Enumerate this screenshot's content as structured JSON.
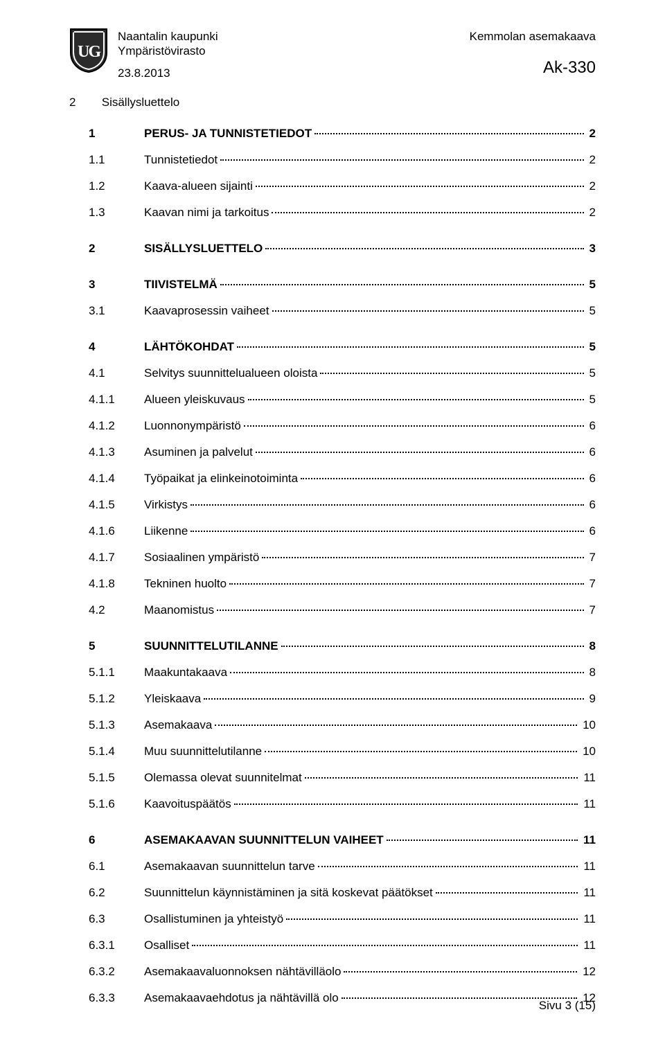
{
  "header": {
    "org_line1": "Naantalin kaupunki",
    "org_line2": "Ympäristövirasto",
    "plan_name": "Kemmolan asemakaava",
    "date": "23.8.2013",
    "code": "Ak-330"
  },
  "section_heading": {
    "num": "2",
    "label": "Sisällysluettelo"
  },
  "toc": [
    {
      "num": "1",
      "title": "PERUS- JA TUNNISTETIEDOT",
      "page": "2",
      "bold": true,
      "spacer_before": false
    },
    {
      "num": "1.1",
      "title": "Tunnistetiedot",
      "page": "2",
      "bold": false,
      "spacer_before": false
    },
    {
      "num": "1.2",
      "title": "Kaava-alueen sijainti",
      "page": "2",
      "bold": false,
      "spacer_before": false
    },
    {
      "num": "1.3",
      "title": "Kaavan nimi ja tarkoitus",
      "page": "2",
      "bold": false,
      "spacer_before": false
    },
    {
      "num": "2",
      "title": "SISÄLLYSLUETTELO",
      "page": "3",
      "bold": true,
      "spacer_before": true
    },
    {
      "num": "3",
      "title": "TIIVISTELMÄ",
      "page": "5",
      "bold": true,
      "spacer_before": true
    },
    {
      "num": "3.1",
      "title": "Kaavaprosessin vaiheet",
      "page": "5",
      "bold": false,
      "spacer_before": false
    },
    {
      "num": "4",
      "title": "LÄHTÖKOHDAT",
      "page": "5",
      "bold": true,
      "spacer_before": true
    },
    {
      "num": "4.1",
      "title": "Selvitys suunnittelualueen oloista",
      "page": "5",
      "bold": false,
      "spacer_before": false
    },
    {
      "num": "4.1.1",
      "title": "Alueen yleiskuvaus",
      "page": "5",
      "bold": false,
      "spacer_before": false
    },
    {
      "num": "4.1.2",
      "title": "Luonnonympäristö",
      "page": "6",
      "bold": false,
      "spacer_before": false
    },
    {
      "num": "4.1.3",
      "title": "Asuminen ja palvelut",
      "page": "6",
      "bold": false,
      "spacer_before": false
    },
    {
      "num": "4.1.4",
      "title": "Työpaikat ja elinkeinotoiminta",
      "page": "6",
      "bold": false,
      "spacer_before": false
    },
    {
      "num": "4.1.5",
      "title": "Virkistys",
      "page": "6",
      "bold": false,
      "spacer_before": false
    },
    {
      "num": "4.1.6",
      "title": "Liikenne",
      "page": "6",
      "bold": false,
      "spacer_before": false
    },
    {
      "num": "4.1.7",
      "title": "Sosiaalinen ympäristö",
      "page": "7",
      "bold": false,
      "spacer_before": false
    },
    {
      "num": "4.1.8",
      "title": "Tekninen huolto",
      "page": "7",
      "bold": false,
      "spacer_before": false
    },
    {
      "num": "4.2",
      "title": "Maanomistus",
      "page": "7",
      "bold": false,
      "spacer_before": false
    },
    {
      "num": "5",
      "title": "SUUNNITTELUTILANNE",
      "page": "8",
      "bold": true,
      "spacer_before": true
    },
    {
      "num": "5.1.1",
      "title": "Maakuntakaava",
      "page": "8",
      "bold": false,
      "spacer_before": false
    },
    {
      "num": "5.1.2",
      "title": "Yleiskaava",
      "page": "9",
      "bold": false,
      "spacer_before": false
    },
    {
      "num": "5.1.3",
      "title": "Asemakaava",
      "page": "10",
      "bold": false,
      "spacer_before": false
    },
    {
      "num": "5.1.4",
      "title": "Muu suunnittelutilanne",
      "page": "10",
      "bold": false,
      "spacer_before": false
    },
    {
      "num": "5.1.5",
      "title": "Olemassa olevat suunnitelmat",
      "page": "11",
      "bold": false,
      "spacer_before": false
    },
    {
      "num": "5.1.6",
      "title": "Kaavoituspäätös",
      "page": "11",
      "bold": false,
      "spacer_before": false
    },
    {
      "num": "6",
      "title": "ASEMAKAAVAN SUUNNITTELUN VAIHEET",
      "page": "11",
      "bold": true,
      "spacer_before": true
    },
    {
      "num": "6.1",
      "title": "Asemakaavan suunnittelun tarve",
      "page": "11",
      "bold": false,
      "spacer_before": false
    },
    {
      "num": "6.2",
      "title": "Suunnittelun käynnistäminen ja sitä koskevat päätökset",
      "page": "11",
      "bold": false,
      "spacer_before": false
    },
    {
      "num": "6.3",
      "title": "Osallistuminen ja yhteistyö",
      "page": "11",
      "bold": false,
      "spacer_before": false
    },
    {
      "num": "6.3.1",
      "title": "Osalliset",
      "page": "11",
      "bold": false,
      "spacer_before": false
    },
    {
      "num": "6.3.2",
      "title": "Asemakaavaluonnoksen nähtävilläolo",
      "page": "12",
      "bold": false,
      "spacer_before": false
    },
    {
      "num": "6.3.3",
      "title": "Asemakaavaehdotus ja nähtävillä olo",
      "page": "12",
      "bold": false,
      "spacer_before": false
    }
  ],
  "footer": {
    "label": "Sivu 3 (15)"
  },
  "colors": {
    "text": "#000000",
    "background": "#ffffff",
    "shield_fill": "#2b2b2b",
    "shield_text": "#ffffff"
  }
}
